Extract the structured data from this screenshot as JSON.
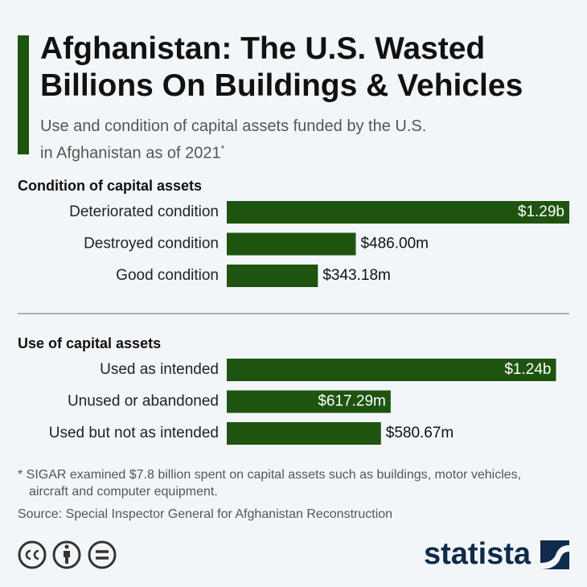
{
  "title": "Afghanistan: The U.S. Wasted Billions On Buildings & Vehicles",
  "subtitle": "Use and condition of capital assets funded by the U.S. in Afghanistan as of 2021",
  "subtitle_mark": "*",
  "chart_data": [
    {
      "type": "bar",
      "orientation": "horizontal",
      "title": "Condition of capital assets",
      "categories": [
        "Deteriorated condition",
        "Destroyed condition",
        "Good condition"
      ],
      "values": [
        1290,
        486,
        343.18
      ],
      "value_labels": [
        "$1.29b",
        "$486.00m",
        "$343.18m"
      ],
      "color": "#1e5410"
    },
    {
      "type": "bar",
      "orientation": "horizontal",
      "title": "Use of capital assets",
      "categories": [
        "Used as intended",
        "Unused or abandoned",
        "Used but not as intended"
      ],
      "values": [
        1240,
        617.29,
        580.67
      ],
      "value_labels": [
        "$1.24b",
        "$617.29m",
        "$580.67m"
      ],
      "color": "#1e5410"
    }
  ],
  "footnote": "* SIGAR examined $7.8 billion spent on capital assets such as buildings, motor vehicles, aircraft and computer equipment.",
  "source": "Source: Special Inspector General for Afghanistan Reconstruction",
  "brand": "statista"
}
